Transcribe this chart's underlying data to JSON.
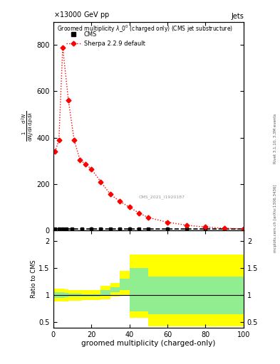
{
  "title_left": "13000 GeV pp",
  "title_right": "Jets",
  "plot_title": "Groomed multiplicity λ_0⁰ (charged only) (CMS jet substructure)",
  "xlabel": "groomed multiplicity (charged-only)",
  "watermark": "CMS_2021_I1920187",
  "rivet_label": "Rivet 3.1.10, 3.3M events",
  "arxiv_label": "mcplots.cern.ch [arXiv:1306.3436]",
  "xlim": [
    0,
    100
  ],
  "ylim_main": [
    0,
    900
  ],
  "ylim_ratio": [
    0.4,
    2.2
  ],
  "yticks_main": [
    0,
    200,
    400,
    600,
    800
  ],
  "ytick_labels_main": [
    "0",
    "200",
    "400",
    "600",
    "800"
  ],
  "yticks_ratio": [
    0.5,
    1.0,
    1.5,
    2.0
  ],
  "sherpa_x": [
    1,
    3,
    5,
    8,
    11,
    14,
    17,
    20,
    25,
    30,
    35,
    40,
    45,
    50,
    60,
    70,
    80,
    90,
    100
  ],
  "sherpa_y": [
    340,
    390,
    790,
    560,
    390,
    305,
    285,
    265,
    210,
    155,
    125,
    100,
    75,
    55,
    35,
    22,
    14,
    9,
    6
  ],
  "cms_bar_x": [
    1,
    3,
    5,
    7,
    10,
    15,
    20,
    25,
    30,
    35,
    40,
    45,
    50,
    60,
    70,
    80,
    90,
    100
  ],
  "cms_bar_y": [
    5,
    5,
    5,
    5,
    5,
    5,
    5,
    5,
    5,
    5,
    5,
    5,
    5,
    5,
    5,
    5,
    5,
    5
  ],
  "ratio_x_edges": [
    0,
    2,
    4,
    6,
    8,
    10,
    15,
    20,
    25,
    30,
    35,
    40,
    50,
    60,
    100
  ],
  "ratio_green_lo": [
    0.95,
    0.95,
    0.95,
    0.96,
    0.97,
    0.97,
    0.98,
    0.98,
    1.0,
    1.05,
    1.1,
    0.7,
    0.65,
    0.65
  ],
  "ratio_green_hi": [
    1.05,
    1.05,
    1.05,
    1.04,
    1.03,
    1.03,
    1.02,
    1.02,
    1.1,
    1.15,
    1.3,
    1.5,
    1.35,
    1.35
  ],
  "ratio_yellow_lo": [
    0.88,
    0.88,
    0.88,
    0.89,
    0.9,
    0.9,
    0.91,
    0.91,
    0.93,
    0.97,
    1.0,
    0.58,
    0.42,
    0.42
  ],
  "ratio_yellow_hi": [
    1.12,
    1.12,
    1.12,
    1.11,
    1.1,
    1.1,
    1.09,
    1.09,
    1.17,
    1.23,
    1.45,
    1.75,
    1.75,
    1.75
  ],
  "background_color": "#ffffff",
  "cms_color": "#000000",
  "sherpa_color": "#ff0000",
  "green_color": "#90ee90",
  "yellow_color": "#ffff00",
  "ratio_line_color": "#000000"
}
